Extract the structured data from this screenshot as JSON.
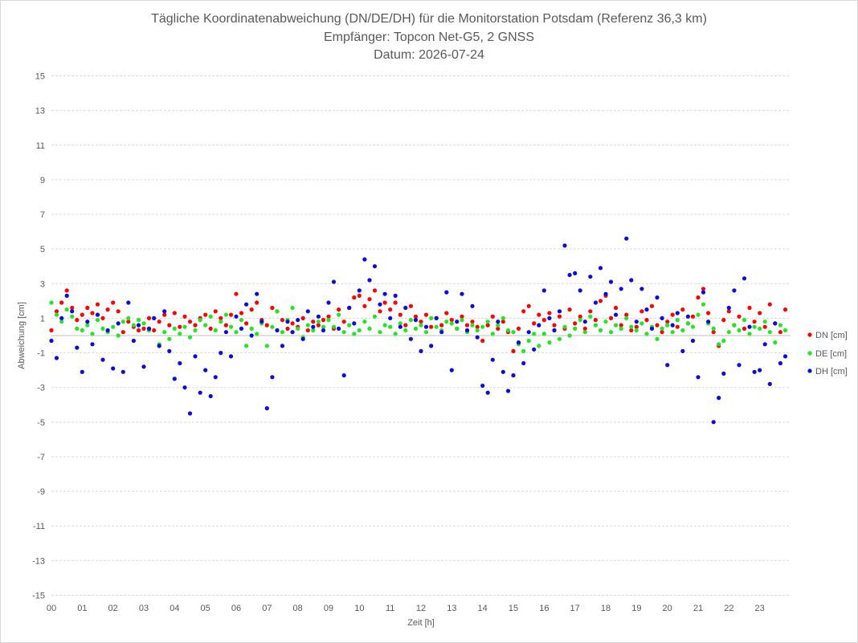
{
  "chart_data": {
    "type": "scatter",
    "title": "Tägliche Koordinatenabweichung (DN/DE/DH) für die Monitorstation Potsdam (Referenz 36,3 km)",
    "subtitle": "Empfänger: Topcon Net-G5, 2 GNSS",
    "date_line": "Datum: 2026-07-24",
    "xlabel": "Zeit [h]",
    "ylabel": "Abweichung [cm]",
    "xlim": [
      0,
      24
    ],
    "ylim": [
      -15,
      15
    ],
    "xticks": [
      "00",
      "01",
      "02",
      "03",
      "04",
      "05",
      "06",
      "07",
      "08",
      "09",
      "10",
      "11",
      "12",
      "13",
      "14",
      "15",
      "16",
      "17",
      "18",
      "19",
      "20",
      "21",
      "22",
      "23"
    ],
    "yticks": [
      15,
      13,
      11,
      9,
      7,
      5,
      3,
      1,
      -1,
      -3,
      -5,
      -7,
      -9,
      -11,
      -13,
      -15
    ],
    "grid": true,
    "legend_position": "right",
    "x": [
      0,
      0.17,
      0.33,
      0.5,
      0.67,
      0.83,
      1,
      1.17,
      1.33,
      1.5,
      1.67,
      1.83,
      2,
      2.17,
      2.33,
      2.5,
      2.67,
      2.83,
      3,
      3.17,
      3.33,
      3.5,
      3.67,
      3.83,
      4,
      4.17,
      4.33,
      4.5,
      4.67,
      4.83,
      5,
      5.17,
      5.33,
      5.5,
      5.67,
      5.83,
      6,
      6.17,
      6.33,
      6.5,
      6.67,
      6.83,
      7,
      7.17,
      7.33,
      7.5,
      7.67,
      7.83,
      8,
      8.17,
      8.33,
      8.5,
      8.67,
      8.83,
      9,
      9.17,
      9.33,
      9.5,
      9.67,
      9.83,
      10,
      10.17,
      10.33,
      10.5,
      10.67,
      10.83,
      11,
      11.17,
      11.33,
      11.5,
      11.67,
      11.83,
      12,
      12.17,
      12.33,
      12.5,
      12.67,
      12.83,
      13,
      13.17,
      13.33,
      13.5,
      13.67,
      13.83,
      14,
      14.17,
      14.33,
      14.5,
      14.67,
      14.83,
      15,
      15.17,
      15.33,
      15.5,
      15.67,
      15.83,
      16,
      16.17,
      16.33,
      16.5,
      16.67,
      16.83,
      17,
      17.17,
      17.33,
      17.5,
      17.67,
      17.83,
      18,
      18.17,
      18.33,
      18.5,
      18.67,
      18.83,
      19,
      19.17,
      19.33,
      19.5,
      19.67,
      19.83,
      20,
      20.17,
      20.33,
      20.5,
      20.67,
      20.83,
      21,
      21.17,
      21.33,
      21.5,
      21.67,
      21.83,
      22,
      22.17,
      22.33,
      22.5,
      22.67,
      22.83,
      23,
      23.17,
      23.33,
      23.5,
      23.67,
      23.83
    ],
    "series": [
      {
        "name": "DN [cm]",
        "color": "#ff0000",
        "values": [
          0.3,
          1.4,
          1.9,
          2.6,
          1.6,
          0.9,
          1.2,
          1.6,
          1.3,
          1.8,
          1.0,
          1.5,
          1.9,
          1.4,
          0.2,
          0.8,
          0.5,
          0.3,
          0.4,
          1.0,
          0.3,
          0.8,
          1.2,
          0.6,
          1.3,
          0.5,
          1.1,
          0.8,
          0.6,
          1.0,
          1.2,
          0.4,
          1.4,
          1.0,
          0.6,
          1.2,
          2.4,
          1.3,
          0.7,
          1.5,
          1.9,
          0.9,
          0.6,
          1.6,
          1.4,
          0.9,
          0.4,
          0.7,
          0.5,
          1.0,
          0.3,
          0.8,
          0.6,
          0.9,
          1.1,
          0.4,
          1.5,
          0.8,
          1.6,
          2.2,
          2.3,
          1.7,
          2.1,
          2.6,
          1.4,
          1.9,
          1.5,
          1.9,
          1.2,
          0.6,
          1.7,
          1.1,
          0.8,
          1.2,
          0.5,
          1.0,
          0.6,
          1.3,
          0.9,
          0.4,
          1.1,
          0.6,
          0.8,
          0.5,
          -0.3,
          0.6,
          1.1,
          0.4,
          0.8,
          0.2,
          -0.9,
          0.4,
          1.4,
          1.7,
          0.7,
          1.2,
          0.9,
          1.3,
          0.6,
          1.1,
          0.4,
          1.5,
          0.7,
          1.1,
          0.4,
          1.4,
          0.9,
          2.0,
          2.3,
          1.0,
          1.6,
          0.6,
          1.2,
          0.3,
          0.5,
          1.4,
          0.9,
          1.7,
          0.6,
          0.2,
          0.8,
          1.2,
          0.5,
          1.5,
          0.7,
          1.1,
          2.2,
          2.7,
          1.3,
          0.2,
          -0.6,
          0.9,
          1.4,
          0.6,
          1.1,
          0.4,
          1.6,
          0.8,
          1.3,
          0.5,
          1.8,
          0.7,
          0.2,
          1.5
        ]
      },
      {
        "name": "DE [cm]",
        "color": "#22e622",
        "values": [
          1.9,
          1.2,
          0.8,
          1.5,
          1.1,
          0.4,
          0.3,
          0.6,
          0.1,
          0.9,
          0.4,
          0.2,
          0.5,
          0.0,
          0.8,
          1.0,
          0.6,
          0.9,
          0.7,
          0.3,
          1.0,
          -0.5,
          0.2,
          -0.2,
          0.4,
          0.1,
          0.5,
          -0.1,
          0.3,
          0.9,
          0.6,
          1.1,
          0.3,
          0.8,
          1.2,
          0.5,
          0.2,
          0.9,
          -0.6,
          0.4,
          0.1,
          0.7,
          -0.6,
          0.5,
          1.4,
          0.2,
          0.9,
          1.6,
          0.4,
          -0.1,
          0.6,
          0.3,
          0.8,
          0.5,
          0.9,
          0.5,
          1.2,
          0.2,
          0.6,
          0.1,
          0.3,
          0.8,
          0.4,
          1.1,
          0.2,
          0.6,
          0.5,
          0.1,
          0.7,
          0.3,
          0.9,
          0.4,
          0.6,
          0.2,
          1.0,
          0.5,
          0.3,
          0.8,
          0.7,
          0.4,
          0.9,
          0.2,
          0.6,
          0.3,
          0.5,
          0.8,
          0.1,
          0.6,
          1.0,
          0.3,
          0.2,
          -0.5,
          -0.9,
          -0.3,
          0.1,
          -0.6,
          0.1,
          -0.4,
          0.3,
          -0.2,
          0.5,
          0.0,
          0.4,
          0.9,
          0.2,
          1.1,
          0.6,
          0.3,
          0.8,
          0.2,
          0.6,
          0.4,
          1.0,
          0.5,
          0.3,
          0.7,
          0.1,
          0.5,
          -0.2,
          0.4,
          0.6,
          0.2,
          0.9,
          0.3,
          0.7,
          0.5,
          1.2,
          1.8,
          0.7,
          0.4,
          -0.5,
          -0.3,
          0.2,
          0.6,
          0.3,
          0.9,
          0.1,
          0.5,
          0.4,
          0.8,
          0.2,
          -0.4,
          0.6,
          0.3
        ]
      },
      {
        "name": "DH [cm]",
        "color": "#0a0adc",
        "values": [
          -0.3,
          -1.3,
          1.0,
          2.3,
          1.4,
          -0.7,
          -2.1,
          0.8,
          -0.5,
          1.2,
          -1.4,
          0.3,
          -1.9,
          0.7,
          -2.1,
          1.9,
          -0.3,
          0.6,
          -1.8,
          0.4,
          1.0,
          -0.6,
          1.4,
          -0.9,
          -2.5,
          -1.6,
          -3.0,
          -4.5,
          -1.2,
          -3.3,
          -2.0,
          -3.5,
          -2.4,
          -1.0,
          0.2,
          -1.2,
          1.1,
          0.4,
          1.8,
          0.0,
          2.4,
          0.8,
          -4.2,
          -2.4,
          0.3,
          -0.6,
          0.8,
          0.2,
          0.9,
          -0.2,
          1.4,
          0.5,
          1.1,
          0.3,
          1.9,
          3.1,
          0.4,
          -2.3,
          1.6,
          0.7,
          2.6,
          4.4,
          3.2,
          4.0,
          1.8,
          2.4,
          1.0,
          2.3,
          0.5,
          1.6,
          -0.2,
          0.9,
          -0.9,
          0.5,
          -0.6,
          1.0,
          0.2,
          2.5,
          -2.0,
          0.8,
          2.4,
          0.3,
          1.7,
          -0.1,
          -2.9,
          -3.3,
          -1.4,
          0.8,
          -2.1,
          -3.2,
          -2.3,
          -0.4,
          -1.6,
          0.2,
          -0.8,
          0.6,
          2.6,
          1.0,
          0.3,
          1.4,
          5.2,
          3.5,
          3.6,
          2.6,
          0.8,
          3.4,
          1.9,
          3.9,
          2.4,
          3.1,
          1.2,
          2.7,
          5.6,
          3.2,
          0.8,
          2.7,
          1.5,
          0.4,
          2.2,
          1.0,
          -1.7,
          0.6,
          1.3,
          -0.9,
          1.1,
          -0.3,
          -2.4,
          2.5,
          0.8,
          -5.0,
          -3.6,
          -2.2,
          1.6,
          2.6,
          -1.7,
          3.3,
          0.5,
          -2.1,
          -2.0,
          -0.5,
          -2.8,
          0.7,
          -1.6,
          -1.2
        ]
      }
    ]
  }
}
